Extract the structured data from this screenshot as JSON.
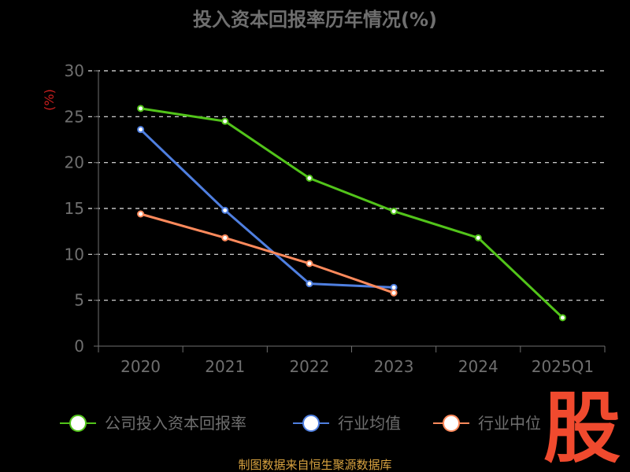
{
  "title": "投入资本回报率历年情况(%)",
  "source": "制图数据来自恒生聚源数据库",
  "logo": "股",
  "colors": {
    "background": "#000000",
    "grid": "#e8e8e8",
    "axis": "#6f6f6f",
    "text": "#6f6f6f",
    "unit": "#cc1f1f",
    "source": "#d9a340",
    "logo": "#f04a2e"
  },
  "chart_data": {
    "type": "line",
    "title": "投入资本回报率历年情况(%)",
    "ylabel": "(%)",
    "xlabel": "",
    "categories": [
      "2020",
      "2021",
      "2022",
      "2023",
      "2024",
      "2025Q1"
    ],
    "ylim": [
      0,
      30
    ],
    "yticks": [
      "0",
      "5",
      "10",
      "15",
      "20",
      "25",
      "30"
    ],
    "grid": true,
    "legend_position": "bottom",
    "series": [
      {
        "name": "公司投入资本回报率",
        "color": "#52c41a",
        "values": [
          25.9,
          24.5,
          18.3,
          14.7,
          11.8,
          3.1
        ]
      },
      {
        "name": "行业均值",
        "color": "#4f7fe0",
        "values": [
          23.6,
          14.8,
          6.8,
          6.4,
          null,
          null
        ]
      },
      {
        "name": "行业中位",
        "color": "#ff8a5c",
        "values": [
          14.4,
          11.8,
          9.0,
          5.8,
          null,
          null
        ]
      }
    ]
  }
}
